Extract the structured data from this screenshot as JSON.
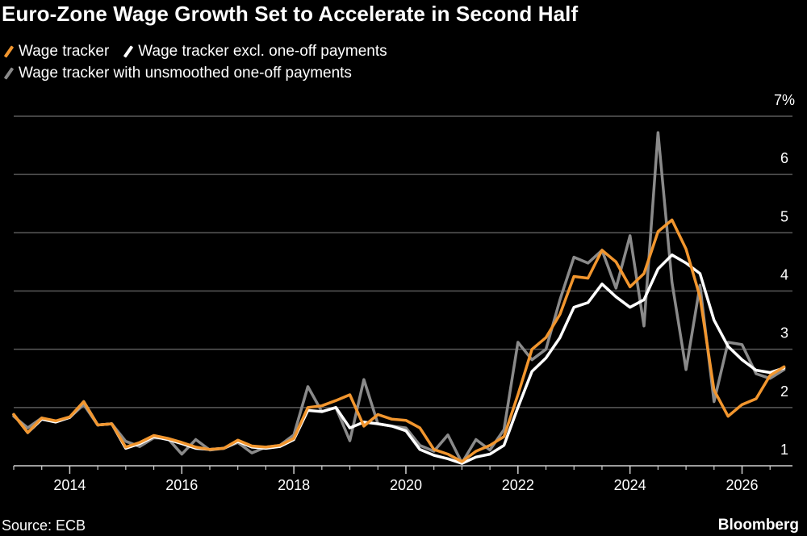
{
  "title": "Euro-Zone Wage Growth Set to Accelerate in Second Half",
  "source": "Source: ECB",
  "brand": "Bloomberg",
  "chart_data": {
    "type": "line",
    "xlim": [
      2013,
      2026.9
    ],
    "ylim": [
      1,
      7
    ],
    "y_ticks": [
      {
        "value": 1,
        "label": "1"
      },
      {
        "value": 2,
        "label": "2"
      },
      {
        "value": 3,
        "label": "3"
      },
      {
        "value": 4,
        "label": "4"
      },
      {
        "value": 5,
        "label": "5"
      },
      {
        "value": 6,
        "label": "6"
      },
      {
        "value": 7,
        "label": "7%"
      }
    ],
    "x_ticks": [
      {
        "value": 2014,
        "label": "2014"
      },
      {
        "value": 2016,
        "label": "2016"
      },
      {
        "value": 2018,
        "label": "2018"
      },
      {
        "value": 2020,
        "label": "2020"
      },
      {
        "value": 2022,
        "label": "2022"
      },
      {
        "value": 2024,
        "label": "2024"
      },
      {
        "value": 2026,
        "label": "2026"
      }
    ],
    "series": [
      {
        "name": "Wage tracker with unsmoothed one-off payments",
        "color": "#8a8a8a",
        "x": [
          2013.0,
          2013.25,
          2013.5,
          2013.75,
          2014.0,
          2014.25,
          2014.5,
          2014.75,
          2015.0,
          2015.25,
          2015.5,
          2015.75,
          2016.0,
          2016.25,
          2016.5,
          2016.75,
          2017.0,
          2017.25,
          2017.5,
          2017.75,
          2018.0,
          2018.25,
          2018.5,
          2018.75,
          2019.0,
          2019.25,
          2019.5,
          2019.75,
          2020.0,
          2020.25,
          2020.5,
          2020.75,
          2021.0,
          2021.25,
          2021.5,
          2021.75,
          2022.0,
          2022.25,
          2022.5,
          2022.75,
          2023.0,
          2023.25,
          2023.5,
          2023.75,
          2024.0,
          2024.25,
          2024.5,
          2024.75,
          2025.0,
          2025.25,
          2025.5,
          2025.75,
          2026.0,
          2026.25,
          2026.5,
          2026.75
        ],
        "values": [
          1.85,
          1.65,
          1.82,
          1.76,
          1.83,
          2.05,
          1.7,
          1.72,
          1.42,
          1.33,
          1.48,
          1.47,
          1.2,
          1.45,
          1.27,
          1.3,
          1.4,
          1.22,
          1.32,
          1.35,
          1.53,
          2.36,
          1.93,
          2.0,
          1.43,
          2.48,
          1.72,
          1.68,
          1.65,
          1.35,
          1.25,
          1.53,
          1.05,
          1.45,
          1.27,
          1.62,
          3.12,
          2.82,
          3.0,
          3.85,
          4.58,
          4.48,
          4.7,
          4.05,
          4.95,
          3.4,
          6.72,
          4.15,
          2.65,
          4.1,
          2.1,
          3.12,
          3.08,
          2.58,
          2.5,
          2.65
        ]
      },
      {
        "name": "Wage tracker excl. one-off payments",
        "color": "#ffffff",
        "x": [
          2013.0,
          2013.25,
          2013.5,
          2013.75,
          2014.0,
          2014.25,
          2014.5,
          2014.75,
          2015.0,
          2015.25,
          2015.5,
          2015.75,
          2016.0,
          2016.25,
          2016.5,
          2016.75,
          2017.0,
          2017.25,
          2017.5,
          2017.75,
          2018.0,
          2018.25,
          2018.5,
          2018.75,
          2019.0,
          2019.25,
          2019.5,
          2019.75,
          2020.0,
          2020.25,
          2020.5,
          2020.75,
          2021.0,
          2021.25,
          2021.5,
          2021.75,
          2022.0,
          2022.25,
          2022.5,
          2022.75,
          2023.0,
          2023.25,
          2023.5,
          2023.75,
          2024.0,
          2024.25,
          2024.5,
          2024.75,
          2025.0,
          2025.25,
          2025.5,
          2025.75,
          2026.0,
          2026.25,
          2026.5,
          2026.75
        ],
        "values": [
          1.88,
          1.57,
          1.8,
          1.75,
          1.83,
          2.1,
          1.7,
          1.72,
          1.3,
          1.38,
          1.5,
          1.45,
          1.38,
          1.3,
          1.28,
          1.3,
          1.42,
          1.32,
          1.3,
          1.33,
          1.45,
          1.95,
          1.93,
          2.0,
          1.65,
          1.75,
          1.72,
          1.68,
          1.6,
          1.28,
          1.18,
          1.12,
          1.04,
          1.15,
          1.2,
          1.35,
          2.0,
          2.62,
          2.85,
          3.2,
          3.72,
          3.8,
          4.12,
          3.9,
          3.72,
          3.85,
          4.38,
          4.62,
          4.48,
          4.3,
          3.5,
          3.05,
          2.82,
          2.64,
          2.6,
          2.68
        ]
      },
      {
        "name": "Wage tracker",
        "color": "#f2962e",
        "x": [
          2013.0,
          2013.25,
          2013.5,
          2013.75,
          2014.0,
          2014.25,
          2014.5,
          2014.75,
          2015.0,
          2015.25,
          2015.5,
          2015.75,
          2016.0,
          2016.25,
          2016.5,
          2016.75,
          2017.0,
          2017.25,
          2017.5,
          2017.75,
          2018.0,
          2018.25,
          2018.5,
          2018.75,
          2019.0,
          2019.25,
          2019.5,
          2019.75,
          2020.0,
          2020.25,
          2020.5,
          2020.75,
          2021.0,
          2021.25,
          2021.5,
          2021.75,
          2022.0,
          2022.25,
          2022.5,
          2022.75,
          2023.0,
          2023.25,
          2023.5,
          2023.75,
          2024.0,
          2024.25,
          2024.5,
          2024.75,
          2025.0,
          2025.25,
          2025.5,
          2025.75,
          2026.0,
          2026.25,
          2026.5,
          2026.75
        ],
        "values": [
          1.88,
          1.57,
          1.82,
          1.77,
          1.84,
          2.1,
          1.7,
          1.72,
          1.32,
          1.4,
          1.52,
          1.47,
          1.4,
          1.32,
          1.28,
          1.3,
          1.44,
          1.34,
          1.32,
          1.35,
          1.47,
          2.0,
          2.03,
          2.12,
          2.22,
          1.68,
          1.88,
          1.8,
          1.78,
          1.65,
          1.28,
          1.2,
          1.07,
          1.25,
          1.35,
          1.5,
          2.22,
          3.0,
          3.2,
          3.6,
          4.25,
          4.22,
          4.7,
          4.5,
          4.07,
          4.3,
          5.02,
          5.22,
          4.72,
          3.9,
          2.3,
          1.85,
          2.05,
          2.15,
          2.55,
          2.7
        ]
      }
    ]
  }
}
